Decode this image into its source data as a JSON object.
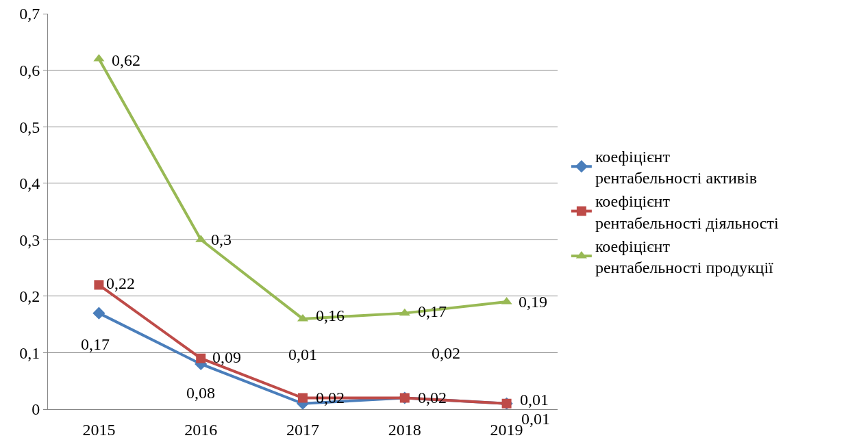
{
  "chart_data": {
    "type": "line",
    "categories": [
      "2015",
      "2016",
      "2017",
      "2018",
      "2019"
    ],
    "series": [
      {
        "name": "коефіцієнт рентабельності активів",
        "color": "#4a7ebb",
        "marker": "diamond",
        "values": [
          0.17,
          0.08,
          0.01,
          0.02,
          0.01
        ],
        "value_labels": [
          "0,17",
          "0,08",
          "0,01",
          "0,02",
          "0,01"
        ]
      },
      {
        "name": "коефіцієнт рентабельності діяльності",
        "color": "#be4b48",
        "marker": "square",
        "values": [
          0.22,
          0.09,
          0.02,
          0.02,
          0.01
        ],
        "value_labels": [
          "0,22",
          "0,09",
          "0,02",
          "0,02",
          "0,01"
        ]
      },
      {
        "name": "коефіцієнт рентабельності продукції",
        "color": "#98b954",
        "marker": "triangle",
        "values": [
          0.62,
          0.3,
          0.16,
          0.17,
          0.19
        ],
        "value_labels": [
          "0,62",
          "0,3",
          "0,16",
          "0,17",
          "0,19"
        ]
      }
    ],
    "ylim": [
      0,
      0.7
    ],
    "yticks": [
      {
        "value": 0,
        "label": "0"
      },
      {
        "value": 0.1,
        "label": "0,1"
      },
      {
        "value": 0.2,
        "label": "0,2"
      },
      {
        "value": 0.3,
        "label": "0,3"
      },
      {
        "value": 0.4,
        "label": "0,4"
      },
      {
        "value": 0.5,
        "label": "0,5"
      },
      {
        "value": 0.6,
        "label": "0,6"
      },
      {
        "value": 0.7,
        "label": "0,7"
      }
    ],
    "grid": "y",
    "legend": "right",
    "line_style": "solid"
  }
}
